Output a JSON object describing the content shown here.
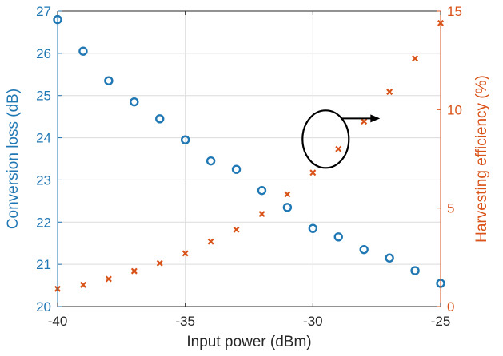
{
  "chart_data": {
    "type": "scatter",
    "xlabel": "Input power (dBm)",
    "ylabel_left": "Conversion loss (dB)",
    "ylabel_right": "Harvesting efficiency (%)",
    "xlim": [
      -40,
      -25
    ],
    "ylim_left": [
      20,
      27
    ],
    "ylim_right": [
      0,
      15
    ],
    "x_ticks": [
      -40,
      -35,
      -30,
      -25
    ],
    "y_left_ticks": [
      20,
      21,
      22,
      23,
      24,
      25,
      26,
      27
    ],
    "y_right_ticks": [
      0,
      5,
      10,
      15
    ],
    "grid": true,
    "colors": {
      "conversion_loss": "#1f77b4",
      "harvesting_efficiency": "#d95319",
      "axis": "#262626",
      "grid": "#dcdcdc"
    },
    "series": [
      {
        "axis": "left",
        "marker": "circle",
        "x": [
          -40,
          -39,
          -38,
          -37,
          -36,
          -35,
          -34,
          -33,
          -32,
          -31,
          -30,
          -29,
          -28,
          -27,
          -26,
          -25
        ],
        "y": [
          26.8,
          26.05,
          25.35,
          24.85,
          24.45,
          23.95,
          23.45,
          23.25,
          22.75,
          22.35,
          21.85,
          21.65,
          21.35,
          21.15,
          20.85,
          20.55
        ]
      },
      {
        "axis": "right",
        "marker": "x",
        "x": [
          -40,
          -39,
          -38,
          -37,
          -36,
          -35,
          -34,
          -33,
          -32,
          -31,
          -30,
          -29,
          -28,
          -27,
          -26,
          -25
        ],
        "y": [
          0.9,
          1.1,
          1.4,
          1.8,
          2.2,
          2.7,
          3.3,
          3.9,
          4.7,
          5.7,
          6.8,
          8.0,
          9.4,
          10.9,
          12.6,
          14.4
        ]
      }
    ],
    "annotation": {
      "type": "ellipse-arrow",
      "center_x": -29.5,
      "center_y_right": 8.5,
      "points_to": "right-axis"
    }
  }
}
